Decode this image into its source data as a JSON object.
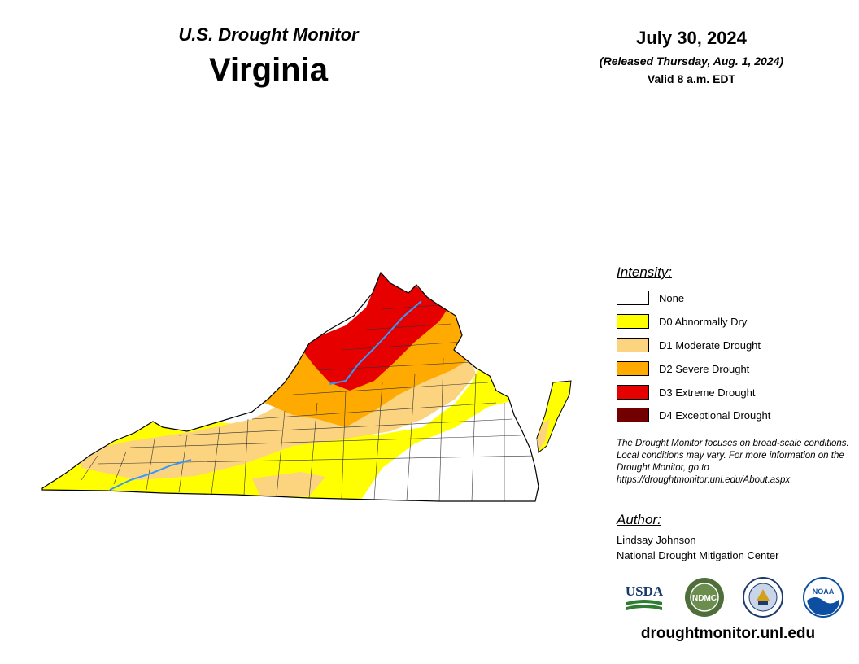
{
  "header": {
    "subtitle": "U.S. Drought Monitor",
    "state": "Virginia",
    "date": "July 30, 2024",
    "released": "(Released Thursday, Aug. 1, 2024)",
    "valid": "Valid 8 a.m. EDT"
  },
  "legend": {
    "title": "Intensity:",
    "items": [
      {
        "label": "None",
        "color": "#FFFFFF"
      },
      {
        "label": "D0 Abnormally Dry",
        "color": "#FFFF00"
      },
      {
        "label": "D1 Moderate Drought",
        "color": "#FCD37F"
      },
      {
        "label": "D2 Severe Drought",
        "color": "#FFAA00"
      },
      {
        "label": "D3 Extreme Drought",
        "color": "#E60000"
      },
      {
        "label": "D4 Exceptional Drought",
        "color": "#730000"
      }
    ]
  },
  "note": "The Drought Monitor focuses on broad-scale conditions. Local conditions may vary. For more information on the Drought Monitor, go to https://droughtmonitor.unl.edu/About.aspx",
  "author": {
    "title": "Author:",
    "name": "Lindsay Johnson",
    "org": "National Drought Mitigation Center"
  },
  "logos": {
    "usda": "USDA",
    "ndmc": "NDMC",
    "doc": "",
    "noaa": "NOAA"
  },
  "website": "droughtmonitor.unl.edu",
  "colors": {
    "none": "#FFFFFF",
    "d0": "#FFFF00",
    "d1": "#FCD37F",
    "d2": "#FFAA00",
    "d3": "#E60000",
    "d4": "#730000",
    "river": "#3399FF"
  }
}
